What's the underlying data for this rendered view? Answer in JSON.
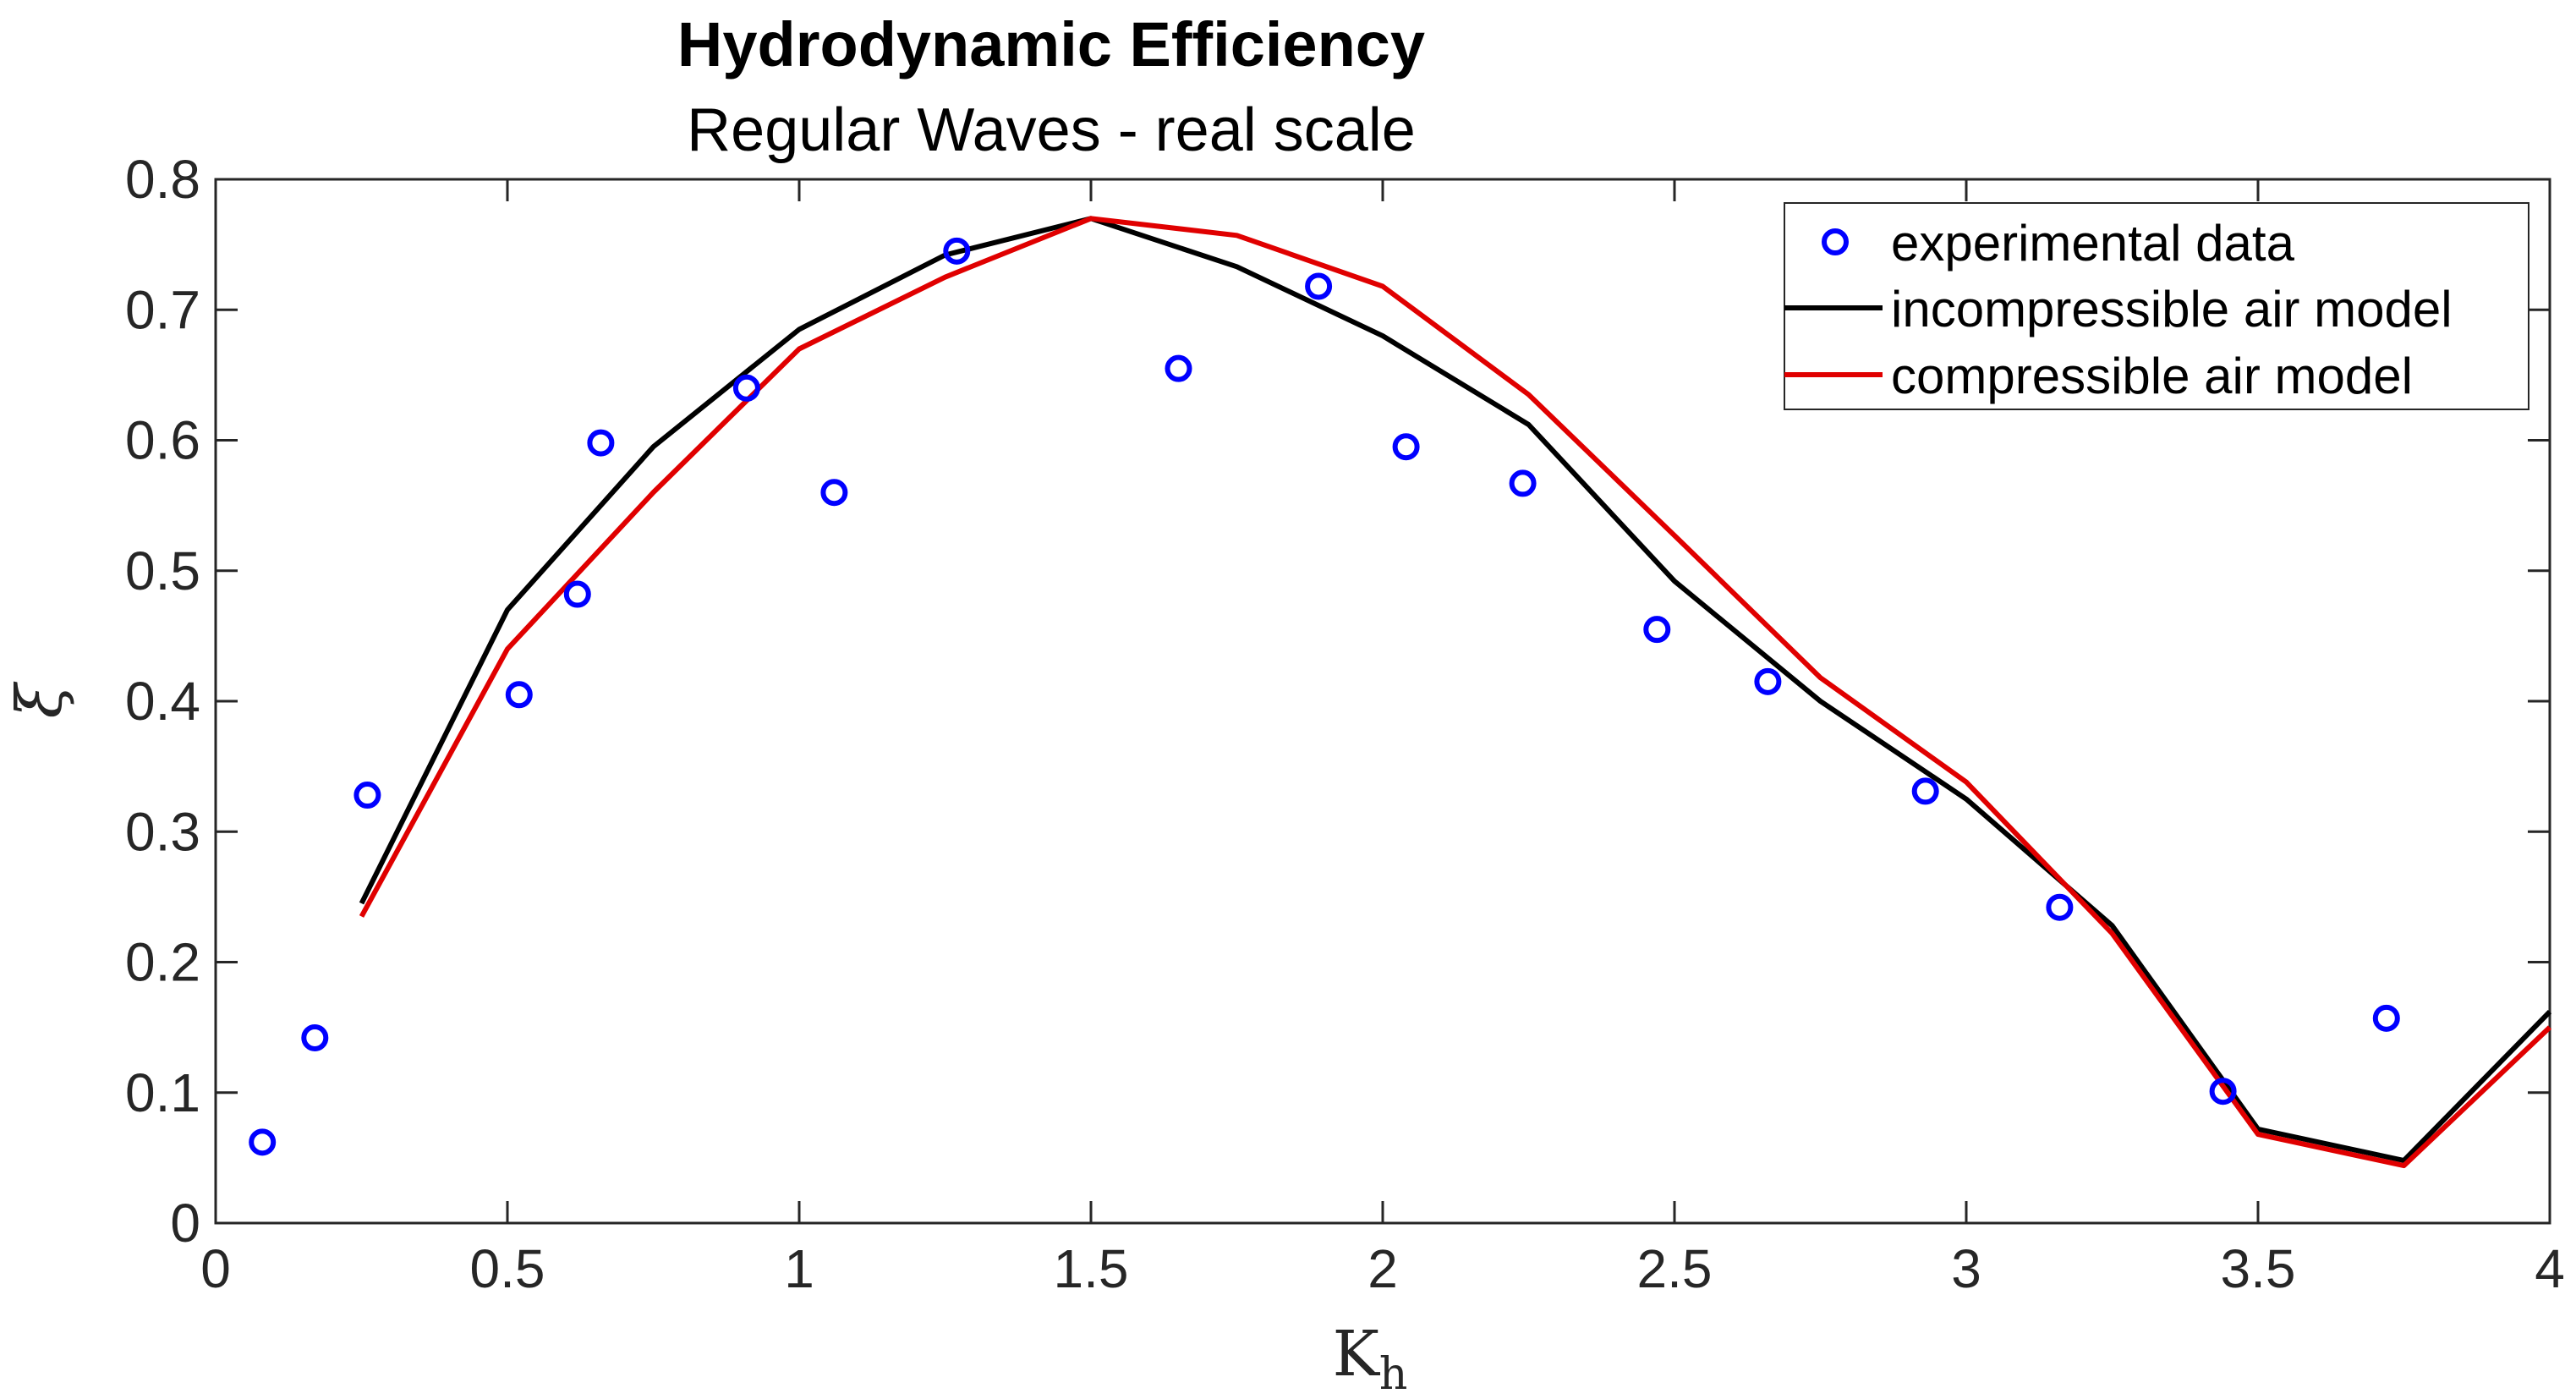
{
  "chart_data": {
    "type": "line",
    "title": "Hydrodynamic Efficiency",
    "subtitle": "Regular Waves - real scale",
    "xlabel": "K",
    "xlabel_subscript": "h",
    "ylabel": "ξ",
    "xlim": [
      0,
      4
    ],
    "ylim": [
      0,
      0.8
    ],
    "xticks": [
      0,
      0.5,
      1,
      1.5,
      2,
      2.5,
      3,
      3.5,
      4
    ],
    "xtick_labels": [
      "0",
      "0.5",
      "1",
      "1.5",
      "2",
      "2.5",
      "3",
      "3.5",
      "4"
    ],
    "yticks": [
      0,
      0.1,
      0.2,
      0.3,
      0.4,
      0.5,
      0.6,
      0.7,
      0.8
    ],
    "ytick_labels": [
      "0",
      "0.1",
      "0.2",
      "0.3",
      "0.4",
      "0.5",
      "0.6",
      "0.7",
      "0.8"
    ],
    "grid": false,
    "legend_position": "top-right",
    "series": [
      {
        "name": "experimental data",
        "kind": "scatter",
        "marker": "circle",
        "color": "#0000ff",
        "x": [
          0.08,
          0.17,
          0.26,
          0.52,
          0.62,
          0.66,
          0.91,
          1.06,
          1.27,
          1.65,
          1.89,
          2.04,
          2.24,
          2.47,
          2.66,
          2.93,
          3.16,
          3.44,
          3.72
        ],
        "y": [
          0.062,
          0.142,
          0.328,
          0.405,
          0.482,
          0.598,
          0.64,
          0.56,
          0.745,
          0.655,
          0.718,
          0.595,
          0.567,
          0.455,
          0.415,
          0.331,
          0.242,
          0.101,
          0.157
        ]
      },
      {
        "name": "incompressible air model",
        "kind": "line",
        "color": "#000000",
        "x": [
          0.25,
          0.5,
          0.75,
          1.0,
          1.25,
          1.5,
          1.75,
          2.0,
          2.25,
          2.5,
          2.75,
          3.0,
          3.25,
          3.5,
          3.75,
          4.0
        ],
        "y": [
          0.245,
          0.47,
          0.595,
          0.685,
          0.742,
          0.77,
          0.733,
          0.68,
          0.612,
          0.492,
          0.4,
          0.325,
          0.228,
          0.072,
          0.048,
          0.162
        ]
      },
      {
        "name": "compressible air model",
        "kind": "line",
        "color": "#e00000",
        "x": [
          0.25,
          0.5,
          0.75,
          1.0,
          1.25,
          1.5,
          1.75,
          2.0,
          2.25,
          2.5,
          2.75,
          3.0,
          3.25,
          3.5,
          3.75,
          4.0
        ],
        "y": [
          0.235,
          0.44,
          0.56,
          0.67,
          0.725,
          0.77,
          0.757,
          0.718,
          0.635,
          0.527,
          0.418,
          0.338,
          0.222,
          0.068,
          0.044,
          0.15
        ]
      }
    ]
  }
}
